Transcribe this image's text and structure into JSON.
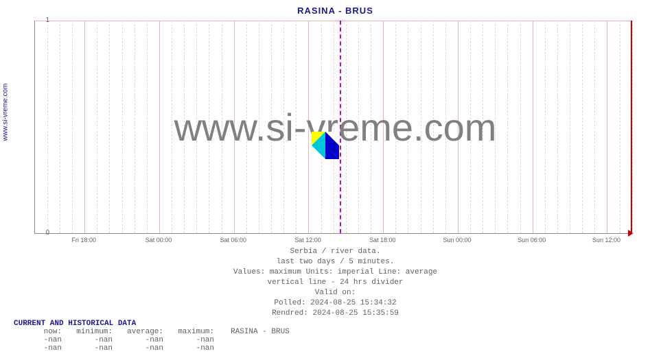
{
  "chart": {
    "title": "RASINA -  BRUS",
    "y_axis_label": "www.si-vreme.com",
    "ylim": [
      0,
      1
    ],
    "yticks": [
      {
        "value": 0,
        "label": "0",
        "pos": 1.0
      },
      {
        "value": 1,
        "label": "1",
        "pos": 0.0
      }
    ],
    "xticks": [
      {
        "label": "Fri 18:00",
        "pos": 0.083
      },
      {
        "label": "Sat 00:00",
        "pos": 0.208
      },
      {
        "label": "Sat 06:00",
        "pos": 0.333
      },
      {
        "label": "Sat 12:00",
        "pos": 0.458
      },
      {
        "label": "Sat 18:00",
        "pos": 0.583
      },
      {
        "label": "Sun 00:00",
        "pos": 0.708
      },
      {
        "label": "Sun 06:00",
        "pos": 0.833
      },
      {
        "label": "Sun 12:00",
        "pos": 0.958
      }
    ],
    "minor_gridlines_per_major": 6,
    "divider_24h_pos": 0.51,
    "watermark": "www.si-vreme.com",
    "grid_color": "#f0d0d0",
    "grid_major_color": "#e8b8b8",
    "divider_color": "#c800c8",
    "end_line_color": "#c80000",
    "title_color": "#1a1a8a",
    "text_color": "#606060",
    "background_color": "#ffffff"
  },
  "info": {
    "line1": "Serbia / river data.",
    "line2": "last two days / 5 minutes.",
    "line3": "Values: maximum  Units: imperial  Line: average",
    "line4": "vertical line - 24 hrs  divider",
    "line5": "Valid on:",
    "line6": "Polled: 2024-08-25 15:34:32",
    "line7": "Rendred: 2024-08-25 15:35:59"
  },
  "data_table": {
    "header": "CURRENT AND HISTORICAL DATA",
    "columns": [
      "now:",
      "minimum:",
      "average:",
      "maximum:"
    ],
    "series_label": "RASINA -  BRUS",
    "rows": [
      [
        "-nan",
        "-nan",
        "-nan",
        "-nan"
      ],
      [
        "-nan",
        "-nan",
        "-nan",
        "-nan"
      ]
    ]
  }
}
